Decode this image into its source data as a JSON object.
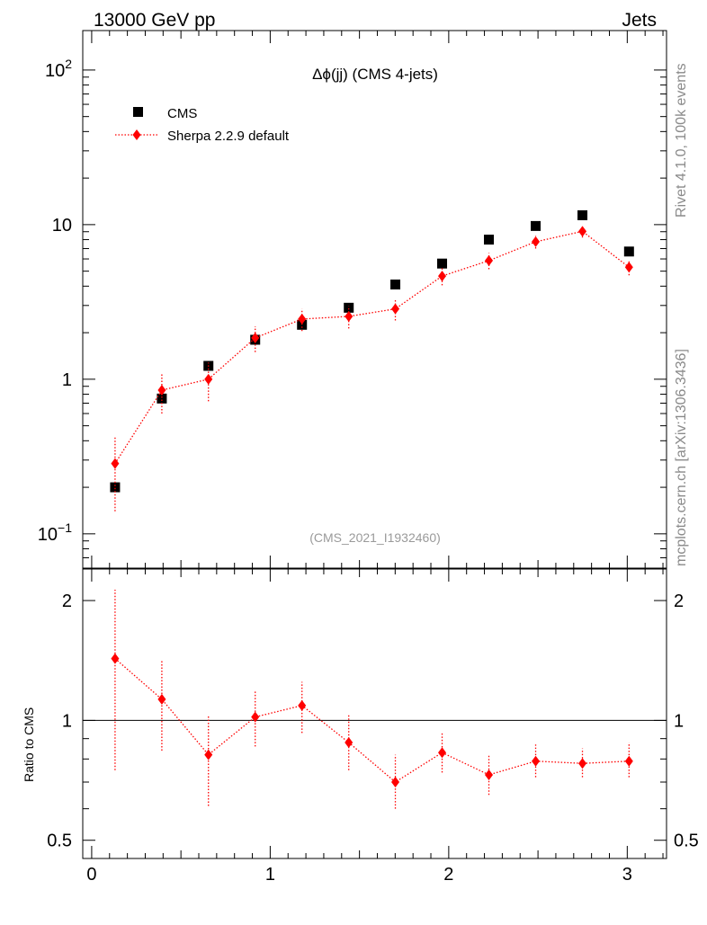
{
  "chart_data": {
    "type": "scatter",
    "header_left": "13000 GeV pp",
    "header_right": "Jets",
    "title": "Δϕ(jj) (CMS 4-jets)",
    "watermark": "(CMS_2021_I1932460)",
    "side_label_top": "Rivet 4.1.0,  100k events",
    "side_label_bottom": "mcplots.cern.ch [arXiv:1306.3436]",
    "ratio_ylabel": "Ratio to CMS",
    "x_range": [
      -0.05,
      3.22
    ],
    "x_ticks": [
      0,
      1,
      2,
      3
    ],
    "main_y_range": [
      0.06,
      180
    ],
    "main_y_scale": "log",
    "main_y_ticks": [
      {
        "value": 100,
        "base": "10",
        "exp": "2"
      },
      {
        "value": 10,
        "label": "10"
      },
      {
        "value": 1,
        "label": "1"
      },
      {
        "value": 0.1,
        "base": "10",
        "exp": "−1"
      }
    ],
    "ratio_y_range": [
      0.45,
      2.4
    ],
    "ratio_y_scale": "log",
    "ratio_y_ticks": [
      {
        "value": 2,
        "label": "2"
      },
      {
        "value": 1,
        "label": "1"
      },
      {
        "value": 0.5,
        "label": "0.5"
      }
    ],
    "legend": [
      {
        "name": "CMS",
        "marker": "square",
        "color": "#000000"
      },
      {
        "name": "Sherpa 2.2.9 default",
        "marker": "diamond",
        "color": "#ff0000"
      }
    ],
    "x": [
      0.131,
      0.393,
      0.654,
      0.916,
      1.178,
      1.44,
      1.701,
      1.963,
      2.225,
      2.487,
      2.749,
      3.01
    ],
    "series": [
      {
        "name": "CMS",
        "values": [
          0.2,
          0.75,
          1.22,
          1.8,
          2.25,
          2.9,
          4.1,
          5.6,
          8.0,
          9.8,
          11.5,
          6.7
        ]
      },
      {
        "name": "Sherpa 2.2.9 default",
        "values": [
          0.285,
          0.85,
          1.0,
          1.85,
          2.45,
          2.55,
          2.85,
          4.65,
          5.85,
          7.75,
          9.05,
          5.3
        ],
        "err_low": [
          0.145,
          0.25,
          0.28,
          0.35,
          0.4,
          0.42,
          0.45,
          0.6,
          0.7,
          0.75,
          0.8,
          0.6
        ],
        "err_high": [
          0.145,
          0.25,
          0.28,
          0.35,
          0.4,
          0.42,
          0.45,
          0.6,
          0.7,
          0.75,
          0.8,
          0.6
        ],
        "ratio": [
          1.43,
          1.13,
          0.82,
          1.02,
          1.09,
          0.88,
          0.7,
          0.83,
          0.73,
          0.79,
          0.78,
          0.79
        ],
        "ratio_low": [
          0.68,
          0.29,
          0.21,
          0.16,
          0.16,
          0.13,
          0.1,
          0.09,
          0.08,
          0.07,
          0.06,
          0.07
        ],
        "ratio_high": [
          0.7,
          0.29,
          0.21,
          0.17,
          0.16,
          0.15,
          0.12,
          0.1,
          0.09,
          0.08,
          0.07,
          0.09
        ]
      }
    ]
  }
}
